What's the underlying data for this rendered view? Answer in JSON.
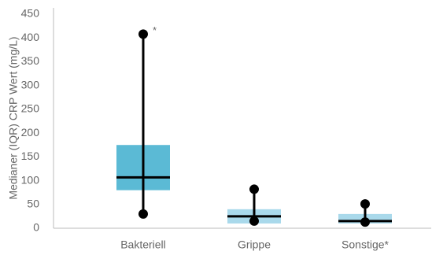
{
  "chart_data": {
    "type": "box",
    "y_label": "Medianer (IQR) CRP Wert (mg/L)",
    "categories": [
      "Bakteriell",
      "Grippe",
      "Sonstige*"
    ],
    "min": [
      30,
      15,
      13
    ],
    "q1": [
      80,
      10,
      10
    ],
    "median": [
      107,
      25,
      15
    ],
    "q3": [
      175,
      40,
      30
    ],
    "max": [
      408,
      82,
      51
    ],
    "colors": [
      "#5bbad5",
      "#a9d9eb",
      "#a9d9eb"
    ],
    "annotation": "*",
    "ylim": [
      0,
      450
    ],
    "yticks": [
      0,
      50,
      100,
      150,
      200,
      250,
      300,
      350,
      400,
      450
    ]
  }
}
